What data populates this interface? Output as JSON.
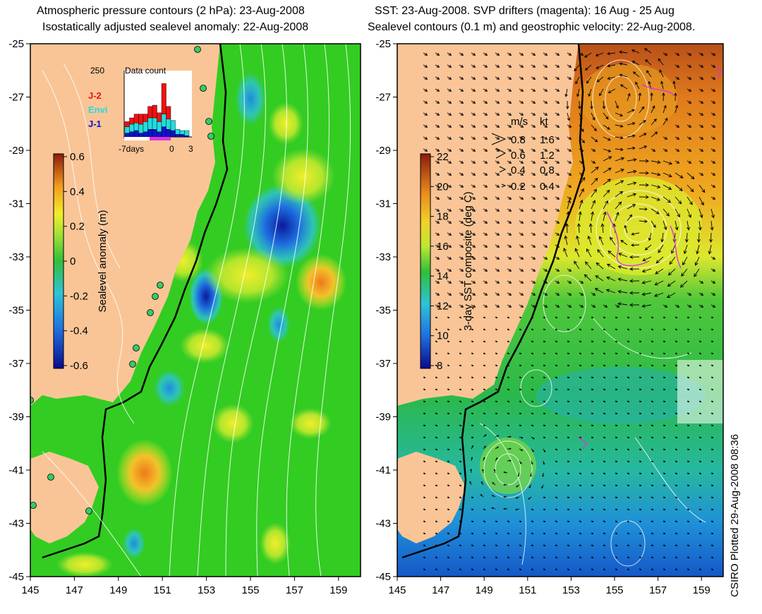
{
  "left_panel": {
    "title_line1": "Atmospheric pressure contours (2 hPa): 23-Aug-2008",
    "title_line2": "Isostatically adjusted sealevel anomaly: 22-Aug-2008",
    "colorbar": {
      "label": "Sealevel anomaly (m)",
      "ticks": [
        "0.6",
        "0.4",
        "0.2",
        "0",
        "-0.2",
        "-0.4",
        "-0.6"
      ],
      "min": -0.6,
      "max": 0.6
    },
    "inset": {
      "title": "Data count",
      "max_label": "250",
      "x_labels": [
        "-7days",
        "0",
        "3"
      ],
      "legend": [
        {
          "name": "J-2",
          "color": "#ee1111"
        },
        {
          "name": "Envi",
          "color": "#22dddd"
        },
        {
          "name": "J-1",
          "color": "#1111cc"
        }
      ],
      "bars": [
        {
          "j1": 15,
          "envi": 25,
          "j2": 20
        },
        {
          "j1": 20,
          "envi": 30,
          "j2": 25
        },
        {
          "j1": 25,
          "envi": 30,
          "j2": 35
        },
        {
          "j1": 15,
          "envi": 35,
          "j2": 40
        },
        {
          "j1": 20,
          "envi": 40,
          "j2": 30
        },
        {
          "j1": 30,
          "envi": 45,
          "j2": 45
        },
        {
          "j1": 30,
          "envi": 45,
          "j2": 50
        },
        {
          "j1": 20,
          "envi": 40,
          "j2": 35
        },
        {
          "j1": 40,
          "envi": 50,
          "j2": 120
        },
        {
          "j1": 30,
          "envi": 40,
          "j2": 50
        },
        {
          "j1": 25,
          "envi": 40,
          "j2": 0
        },
        {
          "j1": 10,
          "envi": 20,
          "j2": 0
        },
        {
          "j1": 10,
          "envi": 15,
          "j2": 0
        },
        {
          "j1": 5,
          "envi": 20,
          "j2": 0
        }
      ]
    }
  },
  "right_panel": {
    "title_line1": "SST: 23-Aug-2008. SVP drifters (magenta): 16 Aug - 25 Aug",
    "title_line2": "Sealevel contours (0.1 m) and geostrophic velocity: 22-Aug-2008.",
    "colorbar": {
      "label": "3-day SST composite (deg C)",
      "ticks": [
        "22",
        "20",
        "18",
        "16",
        "14",
        "12",
        "10",
        "8"
      ],
      "min": 8,
      "max": 22
    },
    "velocity_legend": {
      "header_ms": "m/s",
      "header_kt": "kt",
      "rows": [
        {
          "ms": "0.8",
          "kt": "1.6"
        },
        {
          "ms": "0.6",
          "kt": "1.2"
        },
        {
          "ms": "0.4",
          "kt": "0.8"
        },
        {
          "ms": "0.2",
          "kt": "0.4"
        }
      ]
    }
  },
  "axes": {
    "lon_ticks": [
      "145",
      "147",
      "149",
      "151",
      "153",
      "155",
      "157",
      "159"
    ],
    "lat_ticks": [
      "-25",
      "-27",
      "-29",
      "-31",
      "-33",
      "-35",
      "-37",
      "-39",
      "-41",
      "-43",
      "-45"
    ],
    "lon_range": [
      145,
      160
    ],
    "lat_range": [
      -45,
      -25
    ]
  },
  "credit": "CSIRO Plotted 29-Aug-2008 08:36",
  "colors": {
    "land": "#f9c597",
    "ocean_left": "#33cc22",
    "sst_warm": "#e07a1c",
    "sst_cool": "#2bb84a",
    "sst_cold": "#1f7fd8",
    "drifter": "#dd33dd"
  }
}
